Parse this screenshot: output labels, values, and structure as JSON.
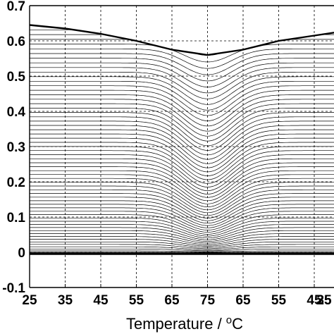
{
  "chart_data": {
    "type": "line",
    "xlabel": "Temperature / oC",
    "xlabel_parts": {
      "prefix": "Temperature / ",
      "superscript": "o",
      "suffix": "C"
    },
    "ylabel": "",
    "x_tick_labels": [
      "25",
      "35",
      "45",
      "55",
      "65",
      "75",
      "65",
      "55",
      "45",
      "35",
      "25"
    ],
    "y_tick_labels": [
      "-0.1",
      "0",
      "0.1",
      "0.2",
      "0.3",
      "0.4",
      "0.5",
      "0.6",
      "0.7"
    ],
    "ylim": [
      -0.1,
      0.7
    ],
    "x_axis_note": "heating 25 to 75 oC then cooling 75 to 25 oC",
    "grid": true,
    "series_count": 60,
    "envelope": {
      "x": [
        "25",
        "35",
        "45",
        "55",
        "65",
        "75",
        "65",
        "55",
        "45",
        "35",
        "25"
      ],
      "top_values": [
        0.645,
        0.635,
        0.62,
        0.6,
        0.575,
        0.56,
        0.575,
        0.6,
        0.615,
        0.63,
        0.645
      ],
      "bottom_values": [
        0.0,
        0.0,
        0.0,
        0.0,
        0.0,
        0.0,
        0.0,
        0.0,
        0.0,
        0.0,
        0.0
      ]
    },
    "colors": {
      "line": "#000000",
      "grid": "#000000",
      "background": "#ffffff"
    }
  }
}
